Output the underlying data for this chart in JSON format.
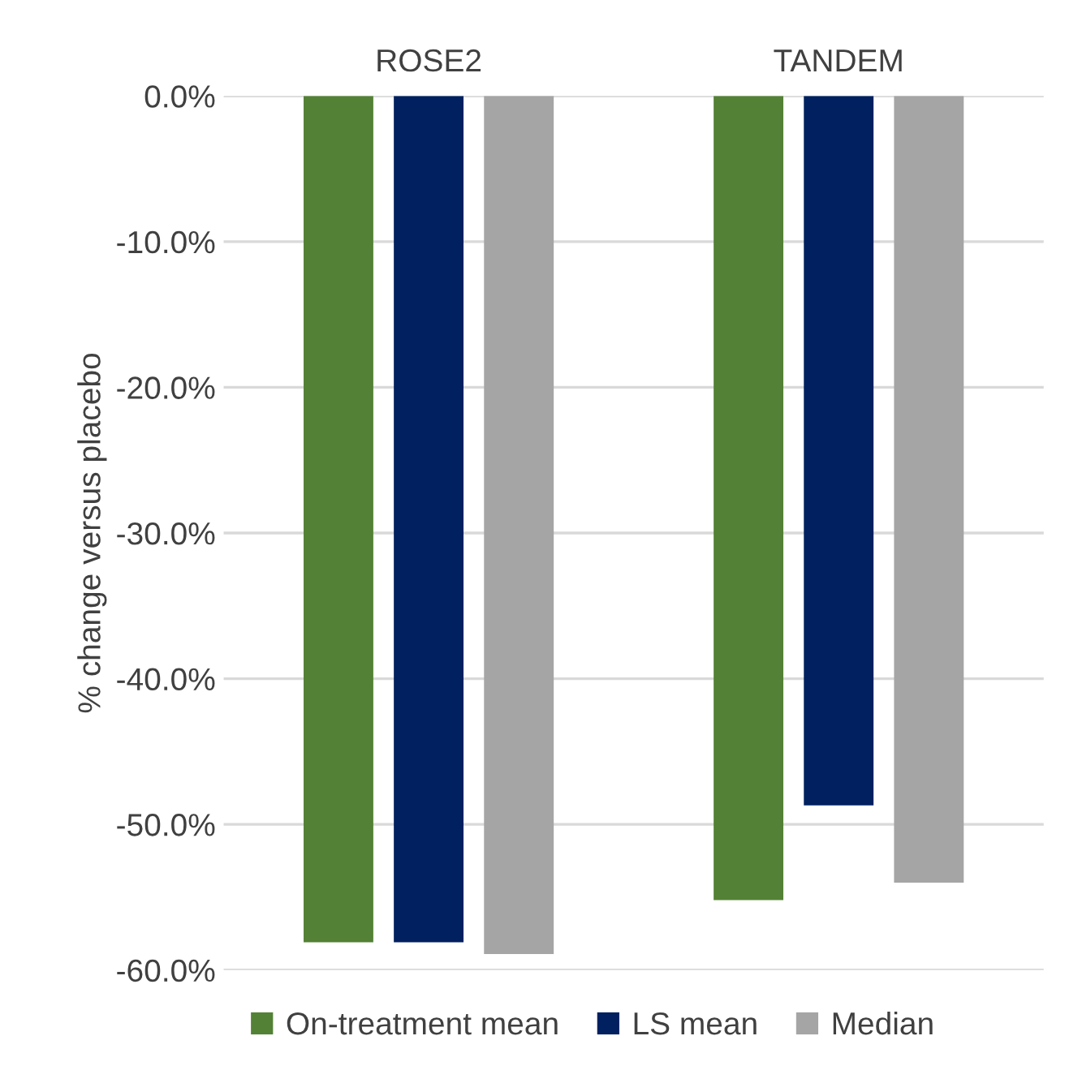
{
  "chart_data": {
    "type": "bar",
    "ylabel": "% change versus placebo",
    "categories": [
      "ROSE2",
      "TANDEM"
    ],
    "series": [
      {
        "name": "On-treatment mean",
        "color": "#538135",
        "values": [
          -58.1,
          -55.2
        ]
      },
      {
        "name": "LS mean",
        "color": "#002060",
        "values": [
          -58.1,
          -48.7
        ]
      },
      {
        "name": "Median",
        "color": "#a5a5a5",
        "values": [
          -58.9,
          -54.0
        ]
      }
    ],
    "ylim": [
      -60,
      0
    ],
    "yticks": [
      {
        "value": 0,
        "label": "0.0%"
      },
      {
        "value": -10,
        "label": "-10.0%"
      },
      {
        "value": -20,
        "label": "-20.0%"
      },
      {
        "value": -30,
        "label": "-30.0%"
      },
      {
        "value": -40,
        "label": "-40.0%"
      },
      {
        "value": -50,
        "label": "-50.0%"
      },
      {
        "value": -60,
        "label": "-60.0%"
      }
    ],
    "grid": "y",
    "legend": "bottom"
  }
}
